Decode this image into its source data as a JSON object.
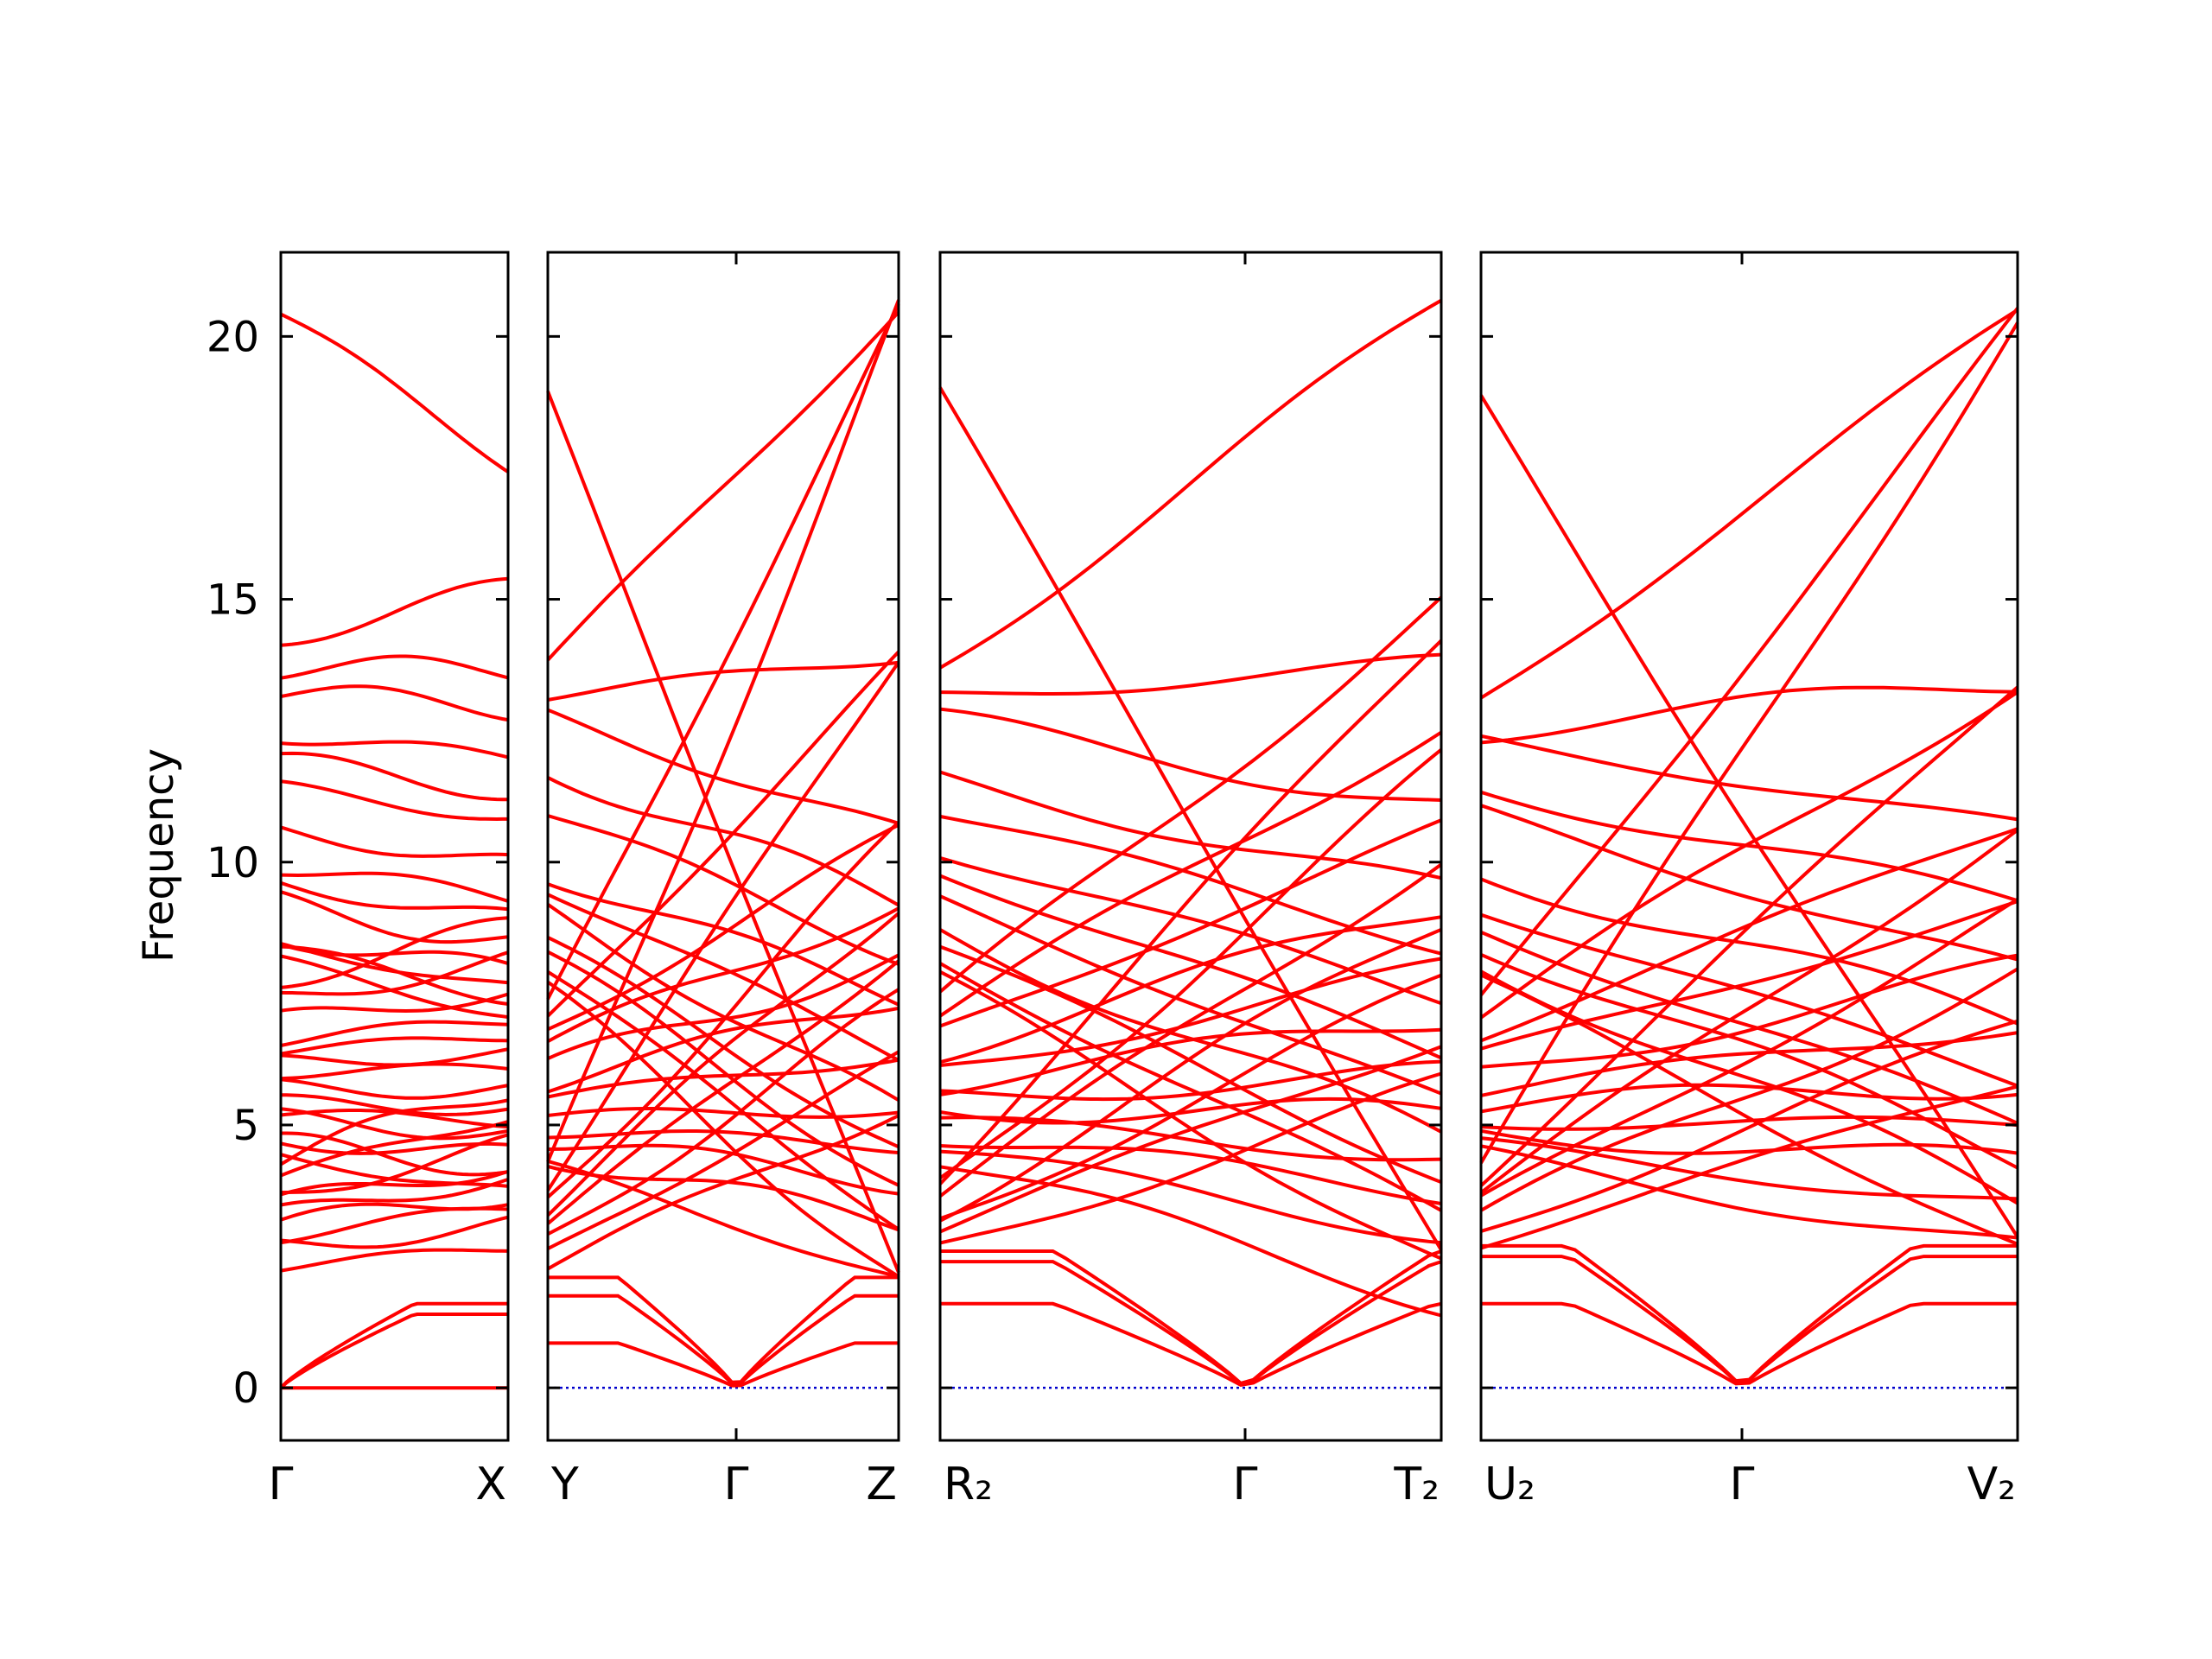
{
  "chart_data": {
    "type": "line",
    "title": "",
    "xlabel": "",
    "ylabel": "Frequency",
    "ylim": [
      -1,
      21.6
    ],
    "yticks": [
      0,
      5,
      10,
      15,
      20
    ],
    "grid": false,
    "legend": "none",
    "colors": {
      "band": "#ff0000",
      "zero_line": "#0000cc",
      "axes": "#000000"
    },
    "segments": [
      {
        "from": "Γ",
        "to": "X",
        "start_label": "Γ",
        "end_label": "X",
        "ends": [
          0,
          1.4,
          1.6,
          2.3,
          2.7,
          2.9,
          3.1,
          3.3,
          3.5,
          3.7,
          4.0,
          4.3,
          4.4,
          4.6,
          4.7,
          5.1,
          5.2,
          5.4,
          5.7,
          6.0,
          6.2,
          6.4,
          6.6,
          7.0,
          7.4,
          7.8,
          8.1,
          8.3,
          8.4,
          8.6,
          9.2,
          9.6,
          9.9,
          10.6,
          11.4,
          11.9,
          12.4,
          13.2,
          13.7,
          14.3,
          20.4
        ]
      },
      {
        "from": "Y",
        "to": "Z",
        "via": "Γ",
        "start_label": "Y",
        "mid_label": "Γ",
        "end_label": "Z",
        "ends": [
          0.85,
          1.75,
          2.1,
          2.5,
          2.8,
          3.1,
          3.4,
          3.7,
          3.9,
          4.2,
          4.4,
          4.6,
          4.8,
          5.1,
          5.3,
          5.6,
          6.0,
          6.3,
          6.6,
          7.1,
          7.4,
          7.6,
          7.9,
          8.2,
          8.6,
          8.9,
          9.2,
          9.9,
          10.3,
          10.6,
          11.9,
          12.8,
          13.9,
          14.3,
          15.0,
          20.5
        ]
      },
      {
        "from": "R2",
        "to": "T2",
        "via": "Γ",
        "start_label": "R₂",
        "mid_label": "Γ",
        "end_label": "T₂",
        "ends": [
          1.6,
          2.4,
          2.6,
          2.9,
          3.3,
          3.5,
          3.7,
          4.0,
          4.2,
          4.4,
          4.7,
          4.9,
          5.2,
          5.5,
          5.8,
          6.0,
          6.3,
          6.6,
          7.0,
          7.4,
          7.7,
          8.0,
          8.4,
          8.8,
          9.1,
          9.5,
          10.1,
          10.7,
          11.1,
          11.9,
          12.6,
          13.8,
          14.3,
          15.0,
          20.6
        ]
      },
      {
        "from": "U2",
        "to": "V2",
        "via": "Γ",
        "start_label": "U₂",
        "mid_label": "Γ",
        "end_label": "V₂",
        "ends": [
          1.6,
          2.5,
          2.7,
          3.0,
          3.3,
          3.5,
          3.8,
          4.0,
          4.3,
          4.6,
          4.8,
          5.0,
          5.3,
          5.5,
          5.8,
          6.1,
          6.5,
          6.9,
          7.3,
          7.7,
          8.0,
          8.4,
          8.8,
          9.2,
          9.5,
          9.9,
          10.7,
          11.9,
          12.4,
          13.4,
          13.6,
          14.3,
          20.4
        ]
      }
    ]
  }
}
